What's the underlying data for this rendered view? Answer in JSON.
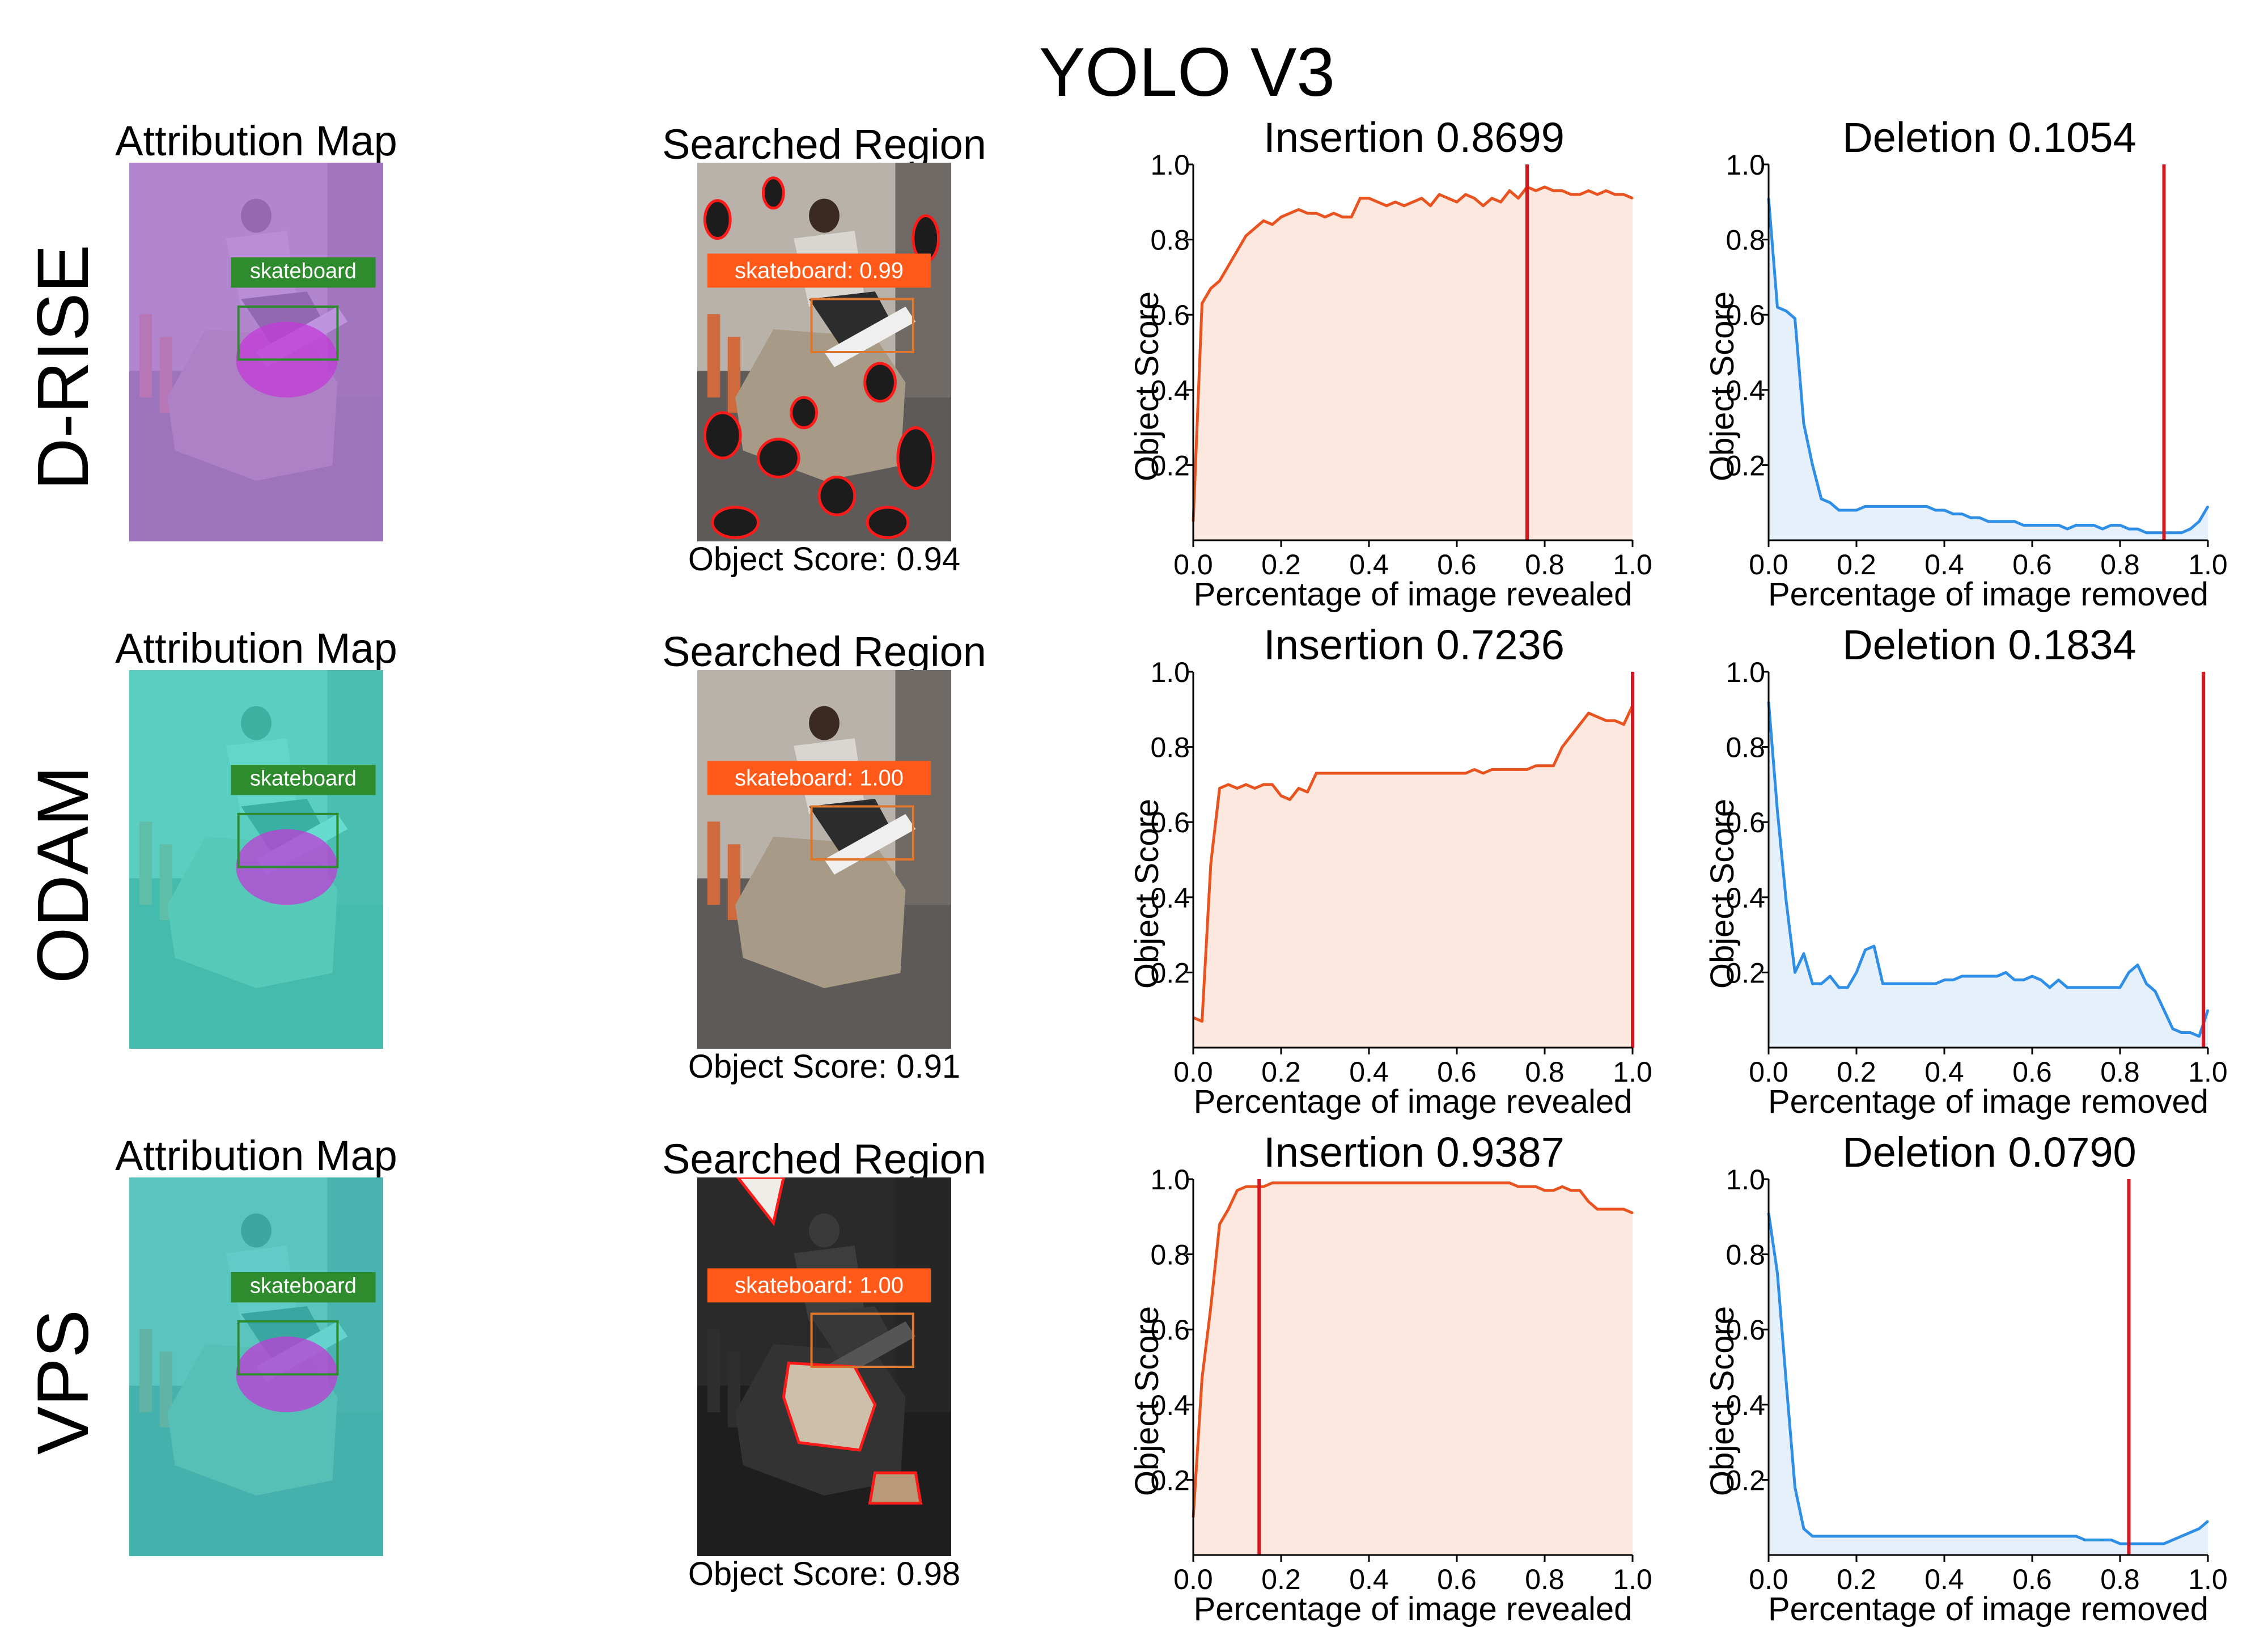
{
  "figure": {
    "title": "YOLO V3",
    "rows": [
      {
        "method": "D-RISE",
        "attribution": {
          "title": "Attribution Map",
          "tint": "#b07ad8",
          "label": "skateboard"
        },
        "searched": {
          "title": "Searched Region",
          "label": "skateboard: 0.99",
          "caption": "Object Score: 0.94"
        }
      },
      {
        "method": "ODAM",
        "attribution": {
          "title": "Attribution Map",
          "tint": "#3fd6c6",
          "label": "skateboard"
        },
        "searched": {
          "title": "Searched Region",
          "label": "skateboard: 1.00",
          "caption": "Object Score: 0.91"
        }
      },
      {
        "method": "VPS",
        "attribution": {
          "title": "Attribution Map",
          "tint": "#3fc9c4",
          "label": "skateboard"
        },
        "searched": {
          "title": "Searched Region",
          "label": "skateboard: 1.00",
          "caption": "Object Score: 0.98"
        }
      }
    ]
  },
  "colors": {
    "insertion_line": "#e8531f",
    "insertion_fill": "#fde8df",
    "deletion_line": "#2f8ee6",
    "deletion_fill": "#e6f0fb",
    "marker": "#d8161f",
    "label_green": "#2e8b2e",
    "label_orange": "#ff5a1a"
  },
  "chart_data": [
    {
      "type": "area",
      "row": "D-RISE",
      "title": "Insertion 0.8699",
      "xlabel": "Percentage of image revealed",
      "ylabel": "Object Score",
      "xlim": [
        0,
        1
      ],
      "ylim": [
        0,
        1
      ],
      "xticks": [
        "0.0",
        "0.2",
        "0.4",
        "0.6",
        "0.8",
        "1.0"
      ],
      "yticks": [
        "0.2",
        "0.4",
        "0.6",
        "0.8",
        "1.0"
      ],
      "marker_x": 0.76,
      "grid": false,
      "x": [
        0,
        0.02,
        0.04,
        0.06,
        0.08,
        0.1,
        0.12,
        0.14,
        0.16,
        0.18,
        0.2,
        0.22,
        0.24,
        0.26,
        0.28,
        0.3,
        0.32,
        0.34,
        0.36,
        0.38,
        0.4,
        0.42,
        0.44,
        0.46,
        0.48,
        0.5,
        0.52,
        0.54,
        0.56,
        0.58,
        0.6,
        0.62,
        0.64,
        0.66,
        0.68,
        0.7,
        0.72,
        0.74,
        0.76,
        0.78,
        0.8,
        0.82,
        0.84,
        0.86,
        0.88,
        0.9,
        0.92,
        0.94,
        0.96,
        0.98,
        1.0
      ],
      "y": [
        0.05,
        0.63,
        0.67,
        0.69,
        0.73,
        0.77,
        0.81,
        0.83,
        0.85,
        0.84,
        0.86,
        0.87,
        0.88,
        0.87,
        0.87,
        0.86,
        0.87,
        0.86,
        0.86,
        0.91,
        0.91,
        0.9,
        0.89,
        0.9,
        0.89,
        0.9,
        0.91,
        0.89,
        0.92,
        0.91,
        0.9,
        0.92,
        0.91,
        0.89,
        0.91,
        0.9,
        0.93,
        0.91,
        0.94,
        0.93,
        0.94,
        0.93,
        0.93,
        0.92,
        0.92,
        0.93,
        0.92,
        0.93,
        0.92,
        0.92,
        0.91
      ]
    },
    {
      "type": "area",
      "row": "D-RISE",
      "title": "Deletion 0.1054",
      "xlabel": "Percentage of image removed",
      "ylabel": "Object Score",
      "xlim": [
        0,
        1
      ],
      "ylim": [
        0,
        1
      ],
      "xticks": [
        "0.0",
        "0.2",
        "0.4",
        "0.6",
        "0.8",
        "1.0"
      ],
      "yticks": [
        "0.2",
        "0.4",
        "0.6",
        "0.8",
        "1.0"
      ],
      "marker_x": 0.9,
      "grid": false,
      "x": [
        0,
        0.02,
        0.04,
        0.06,
        0.08,
        0.1,
        0.12,
        0.14,
        0.16,
        0.18,
        0.2,
        0.22,
        0.24,
        0.26,
        0.28,
        0.3,
        0.32,
        0.34,
        0.36,
        0.38,
        0.4,
        0.42,
        0.44,
        0.46,
        0.48,
        0.5,
        0.52,
        0.54,
        0.56,
        0.58,
        0.6,
        0.62,
        0.64,
        0.66,
        0.68,
        0.7,
        0.72,
        0.74,
        0.76,
        0.78,
        0.8,
        0.82,
        0.84,
        0.86,
        0.88,
        0.9,
        0.92,
        0.94,
        0.96,
        0.98,
        1.0
      ],
      "y": [
        0.91,
        0.62,
        0.61,
        0.59,
        0.31,
        0.2,
        0.11,
        0.1,
        0.08,
        0.08,
        0.08,
        0.09,
        0.09,
        0.09,
        0.09,
        0.09,
        0.09,
        0.09,
        0.09,
        0.08,
        0.08,
        0.07,
        0.07,
        0.06,
        0.06,
        0.05,
        0.05,
        0.05,
        0.05,
        0.04,
        0.04,
        0.04,
        0.04,
        0.04,
        0.03,
        0.04,
        0.04,
        0.04,
        0.03,
        0.04,
        0.04,
        0.03,
        0.03,
        0.02,
        0.02,
        0.02,
        0.02,
        0.02,
        0.03,
        0.05,
        0.09
      ]
    },
    {
      "type": "area",
      "row": "ODAM",
      "title": "Insertion 0.7236",
      "xlabel": "Percentage of image revealed",
      "ylabel": "Object Score",
      "xlim": [
        0,
        1
      ],
      "ylim": [
        0,
        1
      ],
      "xticks": [
        "0.0",
        "0.2",
        "0.4",
        "0.6",
        "0.8",
        "1.0"
      ],
      "yticks": [
        "0.2",
        "0.4",
        "0.6",
        "0.8",
        "1.0"
      ],
      "marker_x": 1.0,
      "grid": false,
      "x": [
        0,
        0.02,
        0.04,
        0.06,
        0.08,
        0.1,
        0.12,
        0.14,
        0.16,
        0.18,
        0.2,
        0.22,
        0.24,
        0.26,
        0.28,
        0.3,
        0.32,
        0.34,
        0.36,
        0.38,
        0.4,
        0.42,
        0.44,
        0.46,
        0.48,
        0.5,
        0.52,
        0.54,
        0.56,
        0.58,
        0.6,
        0.62,
        0.64,
        0.66,
        0.68,
        0.7,
        0.72,
        0.74,
        0.76,
        0.78,
        0.8,
        0.82,
        0.84,
        0.86,
        0.88,
        0.9,
        0.92,
        0.94,
        0.96,
        0.98,
        1.0
      ],
      "y": [
        0.08,
        0.07,
        0.49,
        0.69,
        0.7,
        0.69,
        0.7,
        0.69,
        0.7,
        0.7,
        0.67,
        0.66,
        0.69,
        0.68,
        0.73,
        0.73,
        0.73,
        0.73,
        0.73,
        0.73,
        0.73,
        0.73,
        0.73,
        0.73,
        0.73,
        0.73,
        0.73,
        0.73,
        0.73,
        0.73,
        0.73,
        0.73,
        0.74,
        0.73,
        0.74,
        0.74,
        0.74,
        0.74,
        0.74,
        0.75,
        0.75,
        0.75,
        0.8,
        0.83,
        0.86,
        0.89,
        0.88,
        0.87,
        0.87,
        0.86,
        0.91
      ]
    },
    {
      "type": "area",
      "row": "ODAM",
      "title": "Deletion 0.1834",
      "xlabel": "Percentage of image removed",
      "ylabel": "Object Score",
      "xlim": [
        0,
        1
      ],
      "ylim": [
        0,
        1
      ],
      "xticks": [
        "0.0",
        "0.2",
        "0.4",
        "0.6",
        "0.8",
        "1.0"
      ],
      "yticks": [
        "0.2",
        "0.4",
        "0.6",
        "0.8",
        "1.0"
      ],
      "marker_x": 0.99,
      "grid": false,
      "x": [
        0,
        0.02,
        0.04,
        0.06,
        0.08,
        0.1,
        0.12,
        0.14,
        0.16,
        0.18,
        0.2,
        0.22,
        0.24,
        0.26,
        0.28,
        0.3,
        0.32,
        0.34,
        0.36,
        0.38,
        0.4,
        0.42,
        0.44,
        0.46,
        0.48,
        0.5,
        0.52,
        0.54,
        0.56,
        0.58,
        0.6,
        0.62,
        0.64,
        0.66,
        0.68,
        0.7,
        0.72,
        0.74,
        0.76,
        0.78,
        0.8,
        0.82,
        0.84,
        0.86,
        0.88,
        0.9,
        0.92,
        0.94,
        0.96,
        0.98,
        1.0
      ],
      "y": [
        0.92,
        0.63,
        0.39,
        0.2,
        0.25,
        0.17,
        0.17,
        0.19,
        0.16,
        0.16,
        0.2,
        0.26,
        0.27,
        0.17,
        0.17,
        0.17,
        0.17,
        0.17,
        0.17,
        0.17,
        0.18,
        0.18,
        0.19,
        0.19,
        0.19,
        0.19,
        0.19,
        0.2,
        0.18,
        0.18,
        0.19,
        0.18,
        0.16,
        0.18,
        0.16,
        0.16,
        0.16,
        0.16,
        0.16,
        0.16,
        0.16,
        0.2,
        0.22,
        0.17,
        0.15,
        0.1,
        0.05,
        0.04,
        0.04,
        0.03,
        0.1
      ]
    },
    {
      "type": "area",
      "row": "VPS",
      "title": "Insertion 0.9387",
      "xlabel": "Percentage of image revealed",
      "ylabel": "Object Score",
      "xlim": [
        0,
        1
      ],
      "ylim": [
        0,
        1
      ],
      "xticks": [
        "0.0",
        "0.2",
        "0.4",
        "0.6",
        "0.8",
        "1.0"
      ],
      "yticks": [
        "0.2",
        "0.4",
        "0.6",
        "0.8",
        "1.0"
      ],
      "marker_x": 0.15,
      "grid": false,
      "x": [
        0,
        0.02,
        0.04,
        0.06,
        0.08,
        0.1,
        0.12,
        0.14,
        0.16,
        0.18,
        0.2,
        0.22,
        0.24,
        0.26,
        0.28,
        0.3,
        0.32,
        0.34,
        0.36,
        0.38,
        0.4,
        0.42,
        0.44,
        0.46,
        0.48,
        0.5,
        0.52,
        0.54,
        0.56,
        0.58,
        0.6,
        0.62,
        0.64,
        0.66,
        0.68,
        0.7,
        0.72,
        0.74,
        0.76,
        0.78,
        0.8,
        0.82,
        0.84,
        0.86,
        0.88,
        0.9,
        0.92,
        0.94,
        0.96,
        0.98,
        1.0
      ],
      "y": [
        0.1,
        0.47,
        0.66,
        0.88,
        0.92,
        0.97,
        0.98,
        0.98,
        0.98,
        0.99,
        0.99,
        0.99,
        0.99,
        0.99,
        0.99,
        0.99,
        0.99,
        0.99,
        0.99,
        0.99,
        0.99,
        0.99,
        0.99,
        0.99,
        0.99,
        0.99,
        0.99,
        0.99,
        0.99,
        0.99,
        0.99,
        0.99,
        0.99,
        0.99,
        0.99,
        0.99,
        0.99,
        0.98,
        0.98,
        0.98,
        0.97,
        0.97,
        0.98,
        0.97,
        0.97,
        0.94,
        0.92,
        0.92,
        0.92,
        0.92,
        0.91
      ]
    },
    {
      "type": "area",
      "row": "VPS",
      "title": "Deletion 0.0790",
      "xlabel": "Percentage of image removed",
      "ylabel": "Object Score",
      "xlim": [
        0,
        1
      ],
      "ylim": [
        0,
        1
      ],
      "xticks": [
        "0.0",
        "0.2",
        "0.4",
        "0.6",
        "0.8",
        "1.0"
      ],
      "yticks": [
        "0.2",
        "0.4",
        "0.6",
        "0.8",
        "1.0"
      ],
      "marker_x": 0.82,
      "grid": false,
      "x": [
        0,
        0.02,
        0.04,
        0.06,
        0.08,
        0.1,
        0.12,
        0.14,
        0.16,
        0.18,
        0.2,
        0.22,
        0.24,
        0.26,
        0.28,
        0.3,
        0.32,
        0.34,
        0.36,
        0.38,
        0.4,
        0.42,
        0.44,
        0.46,
        0.48,
        0.5,
        0.52,
        0.54,
        0.56,
        0.58,
        0.6,
        0.62,
        0.64,
        0.66,
        0.68,
        0.7,
        0.72,
        0.74,
        0.76,
        0.78,
        0.8,
        0.82,
        0.84,
        0.86,
        0.88,
        0.9,
        0.92,
        0.94,
        0.96,
        0.98,
        1.0
      ],
      "y": [
        0.91,
        0.75,
        0.46,
        0.18,
        0.07,
        0.05,
        0.05,
        0.05,
        0.05,
        0.05,
        0.05,
        0.05,
        0.05,
        0.05,
        0.05,
        0.05,
        0.05,
        0.05,
        0.05,
        0.05,
        0.05,
        0.05,
        0.05,
        0.05,
        0.05,
        0.05,
        0.05,
        0.05,
        0.05,
        0.05,
        0.05,
        0.05,
        0.05,
        0.05,
        0.05,
        0.05,
        0.04,
        0.04,
        0.04,
        0.04,
        0.03,
        0.03,
        0.03,
        0.03,
        0.03,
        0.03,
        0.04,
        0.05,
        0.06,
        0.07,
        0.09
      ]
    }
  ]
}
